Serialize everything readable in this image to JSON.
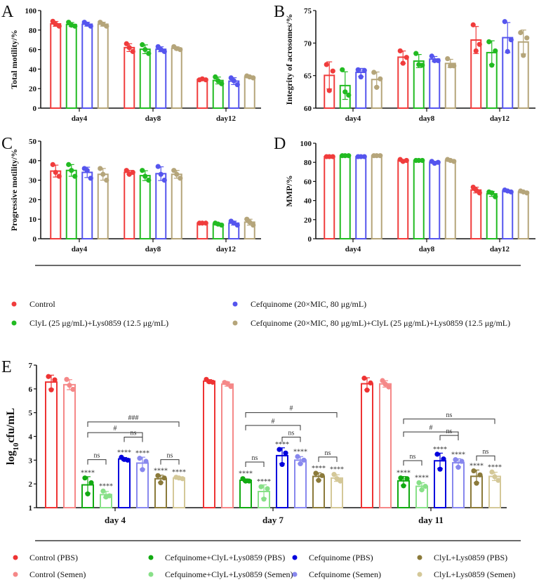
{
  "legend_top": {
    "items": [
      {
        "label": "Control",
        "color": "#f03c3c"
      },
      {
        "label": "ClyL (25 μg/mL)+Lys0859 (12.5 μg/mL)",
        "color": "#22bb22"
      },
      {
        "label": "Cefquinome (20×MIC, 80 μg/mL)",
        "color": "#5555ee"
      },
      {
        "label": "Cefquinome (20×MIC, 80 μg/mL)+ClyL (25 μg/mL)+Lys0859 (12.5 μg/mL)",
        "color": "#b5a57a"
      }
    ]
  },
  "legend_bottom": {
    "items": [
      {
        "label": "Control (PBS)",
        "color": "#ee3333"
      },
      {
        "label": "Control (Semen)",
        "color": "#f58888"
      },
      {
        "label": "Cefquinome+ClyL+Lys0859 (PBS)",
        "color": "#11aa11"
      },
      {
        "label": "Cefquinome+ClyL+Lys0859 (Semen)",
        "color": "#88e088"
      },
      {
        "label": "Cefquinome (PBS)",
        "color": "#0000dd"
      },
      {
        "label": "Cefquinome (Semen)",
        "color": "#8888ee"
      },
      {
        "label": "ClyL+Lys0859 (PBS)",
        "color": "#8b7a3a"
      },
      {
        "label": "ClyL+Lys0859 (Semen)",
        "color": "#d4c898"
      }
    ]
  },
  "chart_data": [
    {
      "panel": "A",
      "type": "bar",
      "ylabel": "Total motility/%",
      "ylim": [
        0,
        100
      ],
      "yticks": [
        0,
        20,
        40,
        60,
        80,
        100
      ],
      "categories": [
        "day4",
        "day8",
        "day12"
      ],
      "colors": [
        "#f03c3c",
        "#22bb22",
        "#5555ee",
        "#b5a57a"
      ],
      "points": [
        [
          [
            89,
            84,
            86
          ],
          [
            88,
            84,
            85
          ],
          [
            88,
            84,
            86
          ],
          [
            88,
            84,
            86
          ]
        ],
        [
          [
            66,
            58,
            62
          ],
          [
            65,
            56,
            60
          ],
          [
            63,
            58,
            60
          ],
          [
            63,
            60,
            61
          ]
        ],
        [
          [
            29,
            29,
            30
          ],
          [
            32,
            25,
            28
          ],
          [
            31,
            24,
            28
          ],
          [
            33,
            31,
            32
          ]
        ]
      ]
    },
    {
      "panel": "B",
      "type": "bar",
      "ylabel": "Integrity of acrosomes/%",
      "ylim": [
        60,
        75
      ],
      "yticks": [
        60,
        65,
        70,
        75
      ],
      "categories": [
        "day4",
        "day8",
        "day12"
      ],
      "colors": [
        "#f03c3c",
        "#22bb22",
        "#5555ee",
        "#b5a57a"
      ],
      "points": [
        [
          [
            66.7,
            65.7,
            62.7
          ],
          [
            65.9,
            62.0,
            62.5
          ],
          [
            65.9,
            65.8,
            64.8
          ],
          [
            65.5,
            64.5,
            63.2
          ]
        ],
        [
          [
            68.8,
            67.8,
            66.9
          ],
          [
            68.4,
            66.6,
            66.7
          ],
          [
            68.0,
            67.3,
            67.3
          ],
          [
            67.6,
            66.5,
            66.5
          ]
        ],
        [
          [
            72.8,
            69.8,
            68.8
          ],
          [
            70.2,
            68.8,
            66.6
          ],
          [
            73.3,
            70.5,
            68.7
          ],
          [
            71.6,
            70.8,
            68.1
          ]
        ]
      ]
    },
    {
      "panel": "C",
      "type": "bar",
      "ylabel": "Progressive motility/%",
      "ylim": [
        0,
        50
      ],
      "yticks": [
        0,
        10,
        20,
        30,
        40,
        50
      ],
      "categories": [
        "day4",
        "day8",
        "day12"
      ],
      "colors": [
        "#f03c3c",
        "#22bb22",
        "#5555ee",
        "#b5a57a"
      ],
      "points": [
        [
          [
            38,
            32,
            34
          ],
          [
            38,
            32,
            35
          ],
          [
            36,
            31,
            35
          ],
          [
            36,
            30,
            33
          ]
        ],
        [
          [
            35,
            34,
            33
          ],
          [
            35,
            30,
            32
          ],
          [
            37,
            30,
            33
          ],
          [
            35,
            31,
            33
          ]
        ],
        [
          [
            8,
            8,
            8
          ],
          [
            8,
            7,
            7.5
          ],
          [
            9,
            7,
            8
          ],
          [
            10,
            7,
            8.5
          ]
        ]
      ]
    },
    {
      "panel": "D",
      "type": "bar",
      "ylabel": "MMP/%",
      "ylim": [
        0,
        100
      ],
      "yticks": [
        0,
        20,
        40,
        60,
        80,
        100
      ],
      "categories": [
        "day4",
        "day8",
        "day12"
      ],
      "colors": [
        "#f03c3c",
        "#22bb22",
        "#5555ee",
        "#b5a57a"
      ],
      "points": [
        [
          [
            86,
            86,
            86
          ],
          [
            87,
            87,
            87
          ],
          [
            86,
            86,
            86
          ],
          [
            87,
            87,
            87
          ]
        ],
        [
          [
            83,
            82,
            81
          ],
          [
            82,
            82,
            82
          ],
          [
            81,
            80,
            79
          ],
          [
            83,
            81,
            82
          ]
        ],
        [
          [
            54,
            48,
            51
          ],
          [
            49,
            44,
            48
          ],
          [
            51,
            49,
            50
          ],
          [
            50,
            48,
            49
          ]
        ]
      ]
    },
    {
      "panel": "E",
      "type": "bar",
      "ylabel": "log10cfu/mL",
      "ylim": [
        1,
        7
      ],
      "yticks": [
        1,
        2,
        3,
        4,
        5,
        6,
        7
      ],
      "categories": [
        "day 4",
        "day 7",
        "day 11"
      ],
      "colors": [
        "#ee3333",
        "#f58888",
        "#11aa11",
        "#88e088",
        "#0000dd",
        "#8888ee",
        "#8b7a3a",
        "#d4c898"
      ],
      "points": [
        [
          [
            6.52,
            6.38,
            5.96
          ],
          [
            6.4,
            5.98,
            6.15
          ],
          [
            2.25,
            2.05,
            1.58
          ],
          [
            1.7,
            1.5,
            1.45
          ],
          [
            3.12,
            3.0,
            3.03
          ],
          [
            3.08,
            2.95,
            2.6
          ],
          [
            2.35,
            2.25,
            2.05
          ],
          [
            2.28,
            2.22,
            2.25
          ]
        ],
        [
          [
            6.4,
            6.28,
            6.3
          ],
          [
            6.27,
            6.1,
            6.23
          ],
          [
            2.22,
            2.12,
            2.12
          ],
          [
            1.88,
            1.8,
            1.36
          ],
          [
            3.45,
            3.3,
            2.82
          ],
          [
            3.15,
            3.0,
            2.85
          ],
          [
            2.45,
            2.35,
            2.15
          ],
          [
            2.4,
            2.12,
            2.22
          ]
        ],
        [
          [
            6.45,
            6.25,
            5.95
          ],
          [
            6.35,
            6.08,
            6.2
          ],
          [
            2.25,
            2.22,
            1.92
          ],
          [
            2.05,
            1.9,
            1.75
          ],
          [
            3.25,
            3.05,
            2.62
          ],
          [
            3.02,
            2.95,
            2.7
          ],
          [
            2.55,
            2.38,
            2.03
          ],
          [
            2.5,
            2.15,
            2.3
          ]
        ]
      ],
      "significance_vs_control": "****",
      "brackets": [
        [
          {
            "from": 2,
            "to": 3,
            "y": 3.02,
            "label": "ns"
          },
          {
            "from": 4,
            "to": 5,
            "y": 3.97,
            "label": "ns"
          },
          {
            "from": 6,
            "to": 7,
            "y": 3.02,
            "label": "ns"
          },
          {
            "from": 2,
            "to": 5,
            "y": 4.16,
            "label": "#"
          },
          {
            "from": 2,
            "to": 7,
            "y": 4.61,
            "label": "###"
          }
        ],
        [
          {
            "from": 2,
            "to": 3,
            "y": 2.92,
            "label": "ns"
          },
          {
            "from": 4,
            "to": 5,
            "y": 3.97,
            "label": "ns"
          },
          {
            "from": 6,
            "to": 7,
            "y": 3.13,
            "label": "ns"
          },
          {
            "from": 2,
            "to": 5,
            "y": 4.46,
            "label": "#"
          },
          {
            "from": 2,
            "to": 7,
            "y": 5.0,
            "label": "#"
          }
        ],
        [
          {
            "from": 2,
            "to": 3,
            "y": 2.98,
            "label": "ns"
          },
          {
            "from": 4,
            "to": 5,
            "y": 4.04,
            "label": "ns"
          },
          {
            "from": 6,
            "to": 7,
            "y": 3.18,
            "label": "ns"
          },
          {
            "from": 2,
            "to": 5,
            "y": 4.19,
            "label": "#"
          },
          {
            "from": 2,
            "to": 7,
            "y": 4.73,
            "label": "ns"
          }
        ]
      ]
    }
  ]
}
